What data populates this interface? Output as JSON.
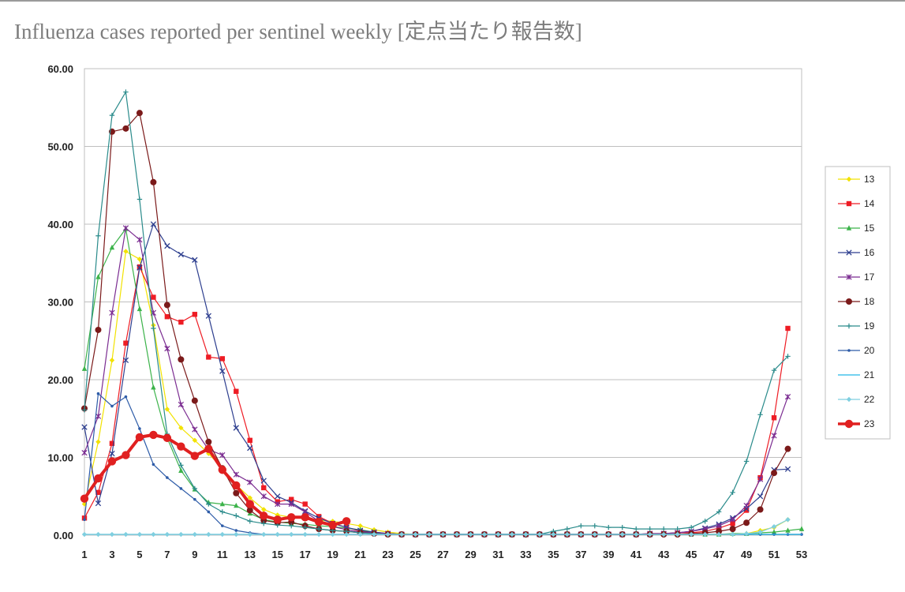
{
  "page": {
    "title": "Influenza cases reported per sentinel weekly [定点当たり報告数]"
  },
  "chart_data": {
    "type": "line",
    "title": "Influenza cases reported per sentinel weekly [定点当たり報告数]",
    "xlabel": "",
    "ylabel": "",
    "x": [
      1,
      2,
      3,
      4,
      5,
      6,
      7,
      8,
      9,
      10,
      11,
      12,
      13,
      14,
      15,
      16,
      17,
      18,
      19,
      20,
      21,
      22,
      23,
      24,
      25,
      26,
      27,
      28,
      29,
      30,
      31,
      32,
      33,
      34,
      35,
      36,
      37,
      38,
      39,
      40,
      41,
      42,
      43,
      44,
      45,
      46,
      47,
      48,
      49,
      50,
      51,
      52,
      53
    ],
    "xticks": [
      1,
      3,
      5,
      7,
      9,
      11,
      13,
      15,
      17,
      19,
      21,
      23,
      25,
      27,
      29,
      31,
      33,
      35,
      37,
      39,
      41,
      43,
      45,
      47,
      49,
      51,
      53
    ],
    "xlim": [
      1,
      53
    ],
    "ylim": [
      0,
      60
    ],
    "yticks": [
      0,
      10,
      20,
      30,
      40,
      50,
      60
    ],
    "ytick_labels": [
      "0.00",
      "10.00",
      "20.00",
      "30.00",
      "40.00",
      "50.00",
      "60.00"
    ],
    "grid": "horizontal",
    "legend": "right",
    "series": [
      {
        "name": "13",
        "color": "#f2e200",
        "marker": "diamond",
        "width": 1.2,
        "values": [
          4.0,
          12.0,
          22.5,
          36.5,
          35.5,
          27.0,
          16.2,
          13.8,
          12.2,
          10.5,
          8.6,
          6.5,
          4.8,
          3.3,
          2.6,
          2.3,
          2.1,
          1.9,
          1.8,
          1.5,
          1.2,
          0.7,
          0.4,
          0.2,
          0.1,
          0.1,
          0.1,
          0.1,
          0.1,
          0.1,
          0.1,
          0.1,
          0.1,
          0.1,
          0.1,
          0.1,
          0.1,
          0.1,
          0.1,
          0.1,
          0.1,
          0.1,
          0.1,
          0.1,
          0.1,
          0.1,
          0.1,
          0.1,
          0.2,
          0.6,
          1.0,
          2.0,
          null
        ]
      },
      {
        "name": "14",
        "color": "#ee1c24",
        "marker": "square",
        "width": 1.2,
        "values": [
          2.2,
          5.5,
          11.8,
          24.7,
          34.5,
          30.6,
          28.1,
          27.4,
          28.4,
          22.9,
          22.7,
          18.5,
          12.2,
          6.1,
          4.3,
          4.6,
          4.0,
          2.4,
          1.5,
          1.0,
          0.5,
          0.3,
          0.2,
          0.1,
          0.1,
          0.1,
          0.1,
          0.1,
          0.1,
          0.1,
          0.1,
          0.1,
          0.1,
          0.1,
          0.1,
          0.1,
          0.1,
          0.1,
          0.1,
          0.1,
          0.1,
          0.2,
          0.2,
          0.3,
          0.3,
          0.5,
          0.9,
          1.5,
          3.2,
          7.4,
          15.1,
          26.6,
          null
        ]
      },
      {
        "name": "15",
        "color": "#3cb34a",
        "marker": "triangle",
        "width": 1.2,
        "values": [
          21.4,
          33.2,
          37.0,
          39.4,
          29.1,
          19.0,
          12.5,
          8.3,
          5.9,
          4.2,
          4.0,
          3.8,
          2.8,
          2.0,
          1.7,
          1.5,
          1.4,
          1.2,
          1.1,
          0.9,
          0.7,
          0.4,
          0.2,
          0.1,
          0.1,
          0.1,
          0.1,
          0.1,
          0.1,
          0.1,
          0.1,
          0.1,
          0.1,
          0.1,
          0.1,
          0.1,
          0.1,
          0.1,
          0.1,
          0.1,
          0.1,
          0.1,
          0.1,
          0.1,
          0.1,
          0.1,
          0.1,
          0.2,
          0.2,
          0.3,
          0.4,
          0.6,
          0.8
        ]
      },
      {
        "name": "16",
        "color": "#2e3f8f",
        "marker": "x",
        "width": 1.2,
        "values": [
          13.9,
          4.1,
          10.5,
          22.5,
          34.4,
          40.0,
          37.2,
          36.1,
          35.4,
          28.2,
          21.1,
          13.8,
          11.2,
          7.0,
          5.0,
          4.2,
          3.1,
          2.2,
          1.5,
          1.0,
          0.6,
          0.4,
          0.2,
          0.1,
          0.1,
          0.1,
          0.1,
          0.1,
          0.1,
          0.1,
          0.1,
          0.1,
          0.1,
          0.1,
          0.1,
          0.1,
          0.1,
          0.1,
          0.1,
          0.1,
          0.1,
          0.1,
          0.2,
          0.3,
          0.5,
          0.9,
          1.4,
          2.2,
          3.4,
          5.0,
          8.4,
          8.5,
          null
        ]
      },
      {
        "name": "17",
        "color": "#7b2c91",
        "marker": "star",
        "width": 1.2,
        "values": [
          10.6,
          15.3,
          28.6,
          39.5,
          38.0,
          28.6,
          24.0,
          16.8,
          13.6,
          11.0,
          10.3,
          7.8,
          6.8,
          5.0,
          4.0,
          4.0,
          3.0,
          1.8,
          1.1,
          0.7,
          0.4,
          0.3,
          0.2,
          0.1,
          0.1,
          0.1,
          0.1,
          0.1,
          0.1,
          0.1,
          0.1,
          0.1,
          0.1,
          0.1,
          0.1,
          0.1,
          0.1,
          0.1,
          0.1,
          0.1,
          0.1,
          0.2,
          0.2,
          0.3,
          0.5,
          0.8,
          1.2,
          2.0,
          3.8,
          7.2,
          12.8,
          17.8,
          null
        ]
      },
      {
        "name": "18",
        "color": "#7b1a1a",
        "marker": "circle",
        "width": 1.2,
        "values": [
          16.3,
          26.4,
          51.9,
          52.3,
          54.3,
          45.4,
          29.6,
          22.6,
          17.3,
          12.0,
          8.6,
          5.4,
          3.2,
          1.9,
          1.6,
          1.7,
          1.2,
          0.8,
          0.6,
          0.5,
          0.3,
          0.2,
          0.1,
          0.1,
          0.1,
          0.1,
          0.1,
          0.1,
          0.1,
          0.1,
          0.1,
          0.1,
          0.1,
          0.1,
          0.1,
          0.1,
          0.1,
          0.1,
          0.1,
          0.1,
          0.1,
          0.1,
          0.1,
          0.1,
          0.2,
          0.3,
          0.5,
          0.8,
          1.6,
          3.3,
          8.0,
          11.1,
          null
        ]
      },
      {
        "name": "19",
        "color": "#2a8b8b",
        "marker": "plus",
        "width": 1.2,
        "values": [
          16.1,
          38.5,
          54.0,
          57.0,
          43.2,
          26.6,
          13.0,
          9.0,
          6.0,
          4.0,
          3.0,
          2.5,
          1.8,
          1.5,
          1.3,
          1.2,
          1.0,
          0.8,
          0.6,
          0.5,
          0.3,
          0.2,
          0.1,
          0.1,
          0.1,
          0.1,
          0.1,
          0.1,
          0.1,
          0.1,
          0.1,
          0.1,
          0.1,
          0.1,
          0.5,
          0.8,
          1.2,
          1.2,
          1.0,
          1.0,
          0.8,
          0.8,
          0.8,
          0.8,
          1.0,
          1.8,
          3.0,
          5.5,
          9.5,
          15.5,
          21.2,
          23.0,
          null
        ]
      },
      {
        "name": "20",
        "color": "#2e5ca8",
        "marker": "dot",
        "width": 1.2,
        "values": [
          2.0,
          18.2,
          16.6,
          17.8,
          13.7,
          9.1,
          7.4,
          6.0,
          4.6,
          3.0,
          1.2,
          0.6,
          0.3,
          0.1,
          0.1,
          0.1,
          0.1,
          0.1,
          0.1,
          0.1,
          0.1,
          0.1,
          0.1,
          0.1,
          0.1,
          0.1,
          0.1,
          0.1,
          0.1,
          0.1,
          0.1,
          0.1,
          0.1,
          0.1,
          0.1,
          0.1,
          0.1,
          0.1,
          0.1,
          0.1,
          0.1,
          0.1,
          0.1,
          0.1,
          0.1,
          0.1,
          0.1,
          0.1,
          0.1,
          0.1,
          0.1,
          0.1,
          0.1
        ]
      },
      {
        "name": "21",
        "color": "#22b6e6",
        "marker": "none",
        "width": 1.2,
        "values": [
          0.1,
          0.1,
          0.1,
          0.1,
          0.1,
          0.1,
          0.1,
          0.1,
          0.1,
          0.1,
          0.1,
          0.1,
          0.1,
          0.1,
          0.1,
          0.1,
          0.1,
          0.1,
          0.1,
          0.1,
          0.1,
          0.1,
          0.1,
          0.1,
          0.1,
          0.1,
          0.1,
          0.1,
          0.1,
          0.1,
          0.1,
          0.1,
          0.1,
          0.1,
          0.1,
          0.1,
          0.1,
          0.1,
          0.1,
          0.1,
          0.1,
          0.1,
          0.1,
          0.1,
          0.1,
          0.1,
          0.1,
          0.1,
          0.1,
          0.1,
          0.1,
          0.1,
          0.1
        ]
      },
      {
        "name": "22",
        "color": "#7fcfe0",
        "marker": "diamond",
        "width": 1.2,
        "values": [
          0.1,
          0.1,
          0.1,
          0.1,
          0.1,
          0.1,
          0.1,
          0.1,
          0.1,
          0.1,
          0.1,
          0.1,
          0.1,
          0.1,
          0.1,
          0.1,
          0.1,
          0.1,
          0.1,
          0.1,
          0.1,
          0.1,
          0.1,
          0.1,
          0.1,
          0.1,
          0.1,
          0.1,
          0.1,
          0.1,
          0.1,
          0.1,
          0.1,
          0.1,
          0.1,
          0.1,
          0.1,
          0.1,
          0.1,
          0.1,
          0.1,
          0.1,
          0.1,
          0.1,
          0.1,
          0.1,
          0.1,
          0.1,
          0.2,
          0.4,
          1.1,
          2.0,
          null
        ]
      },
      {
        "name": "23",
        "color": "#e02020",
        "marker": "circle",
        "width": 4,
        "values": [
          4.7,
          7.3,
          9.5,
          10.3,
          12.6,
          12.9,
          12.5,
          11.4,
          10.2,
          11.1,
          8.4,
          6.4,
          4.0,
          2.5,
          2.0,
          2.3,
          2.3,
          1.7,
          1.3,
          1.8,
          null,
          null,
          null,
          null,
          null,
          null,
          null,
          null,
          null,
          null,
          null,
          null,
          null,
          null,
          null,
          null,
          null,
          null,
          null,
          null,
          null,
          null,
          null,
          null,
          null,
          null,
          null,
          null,
          null,
          null,
          null,
          null,
          null
        ]
      }
    ]
  }
}
